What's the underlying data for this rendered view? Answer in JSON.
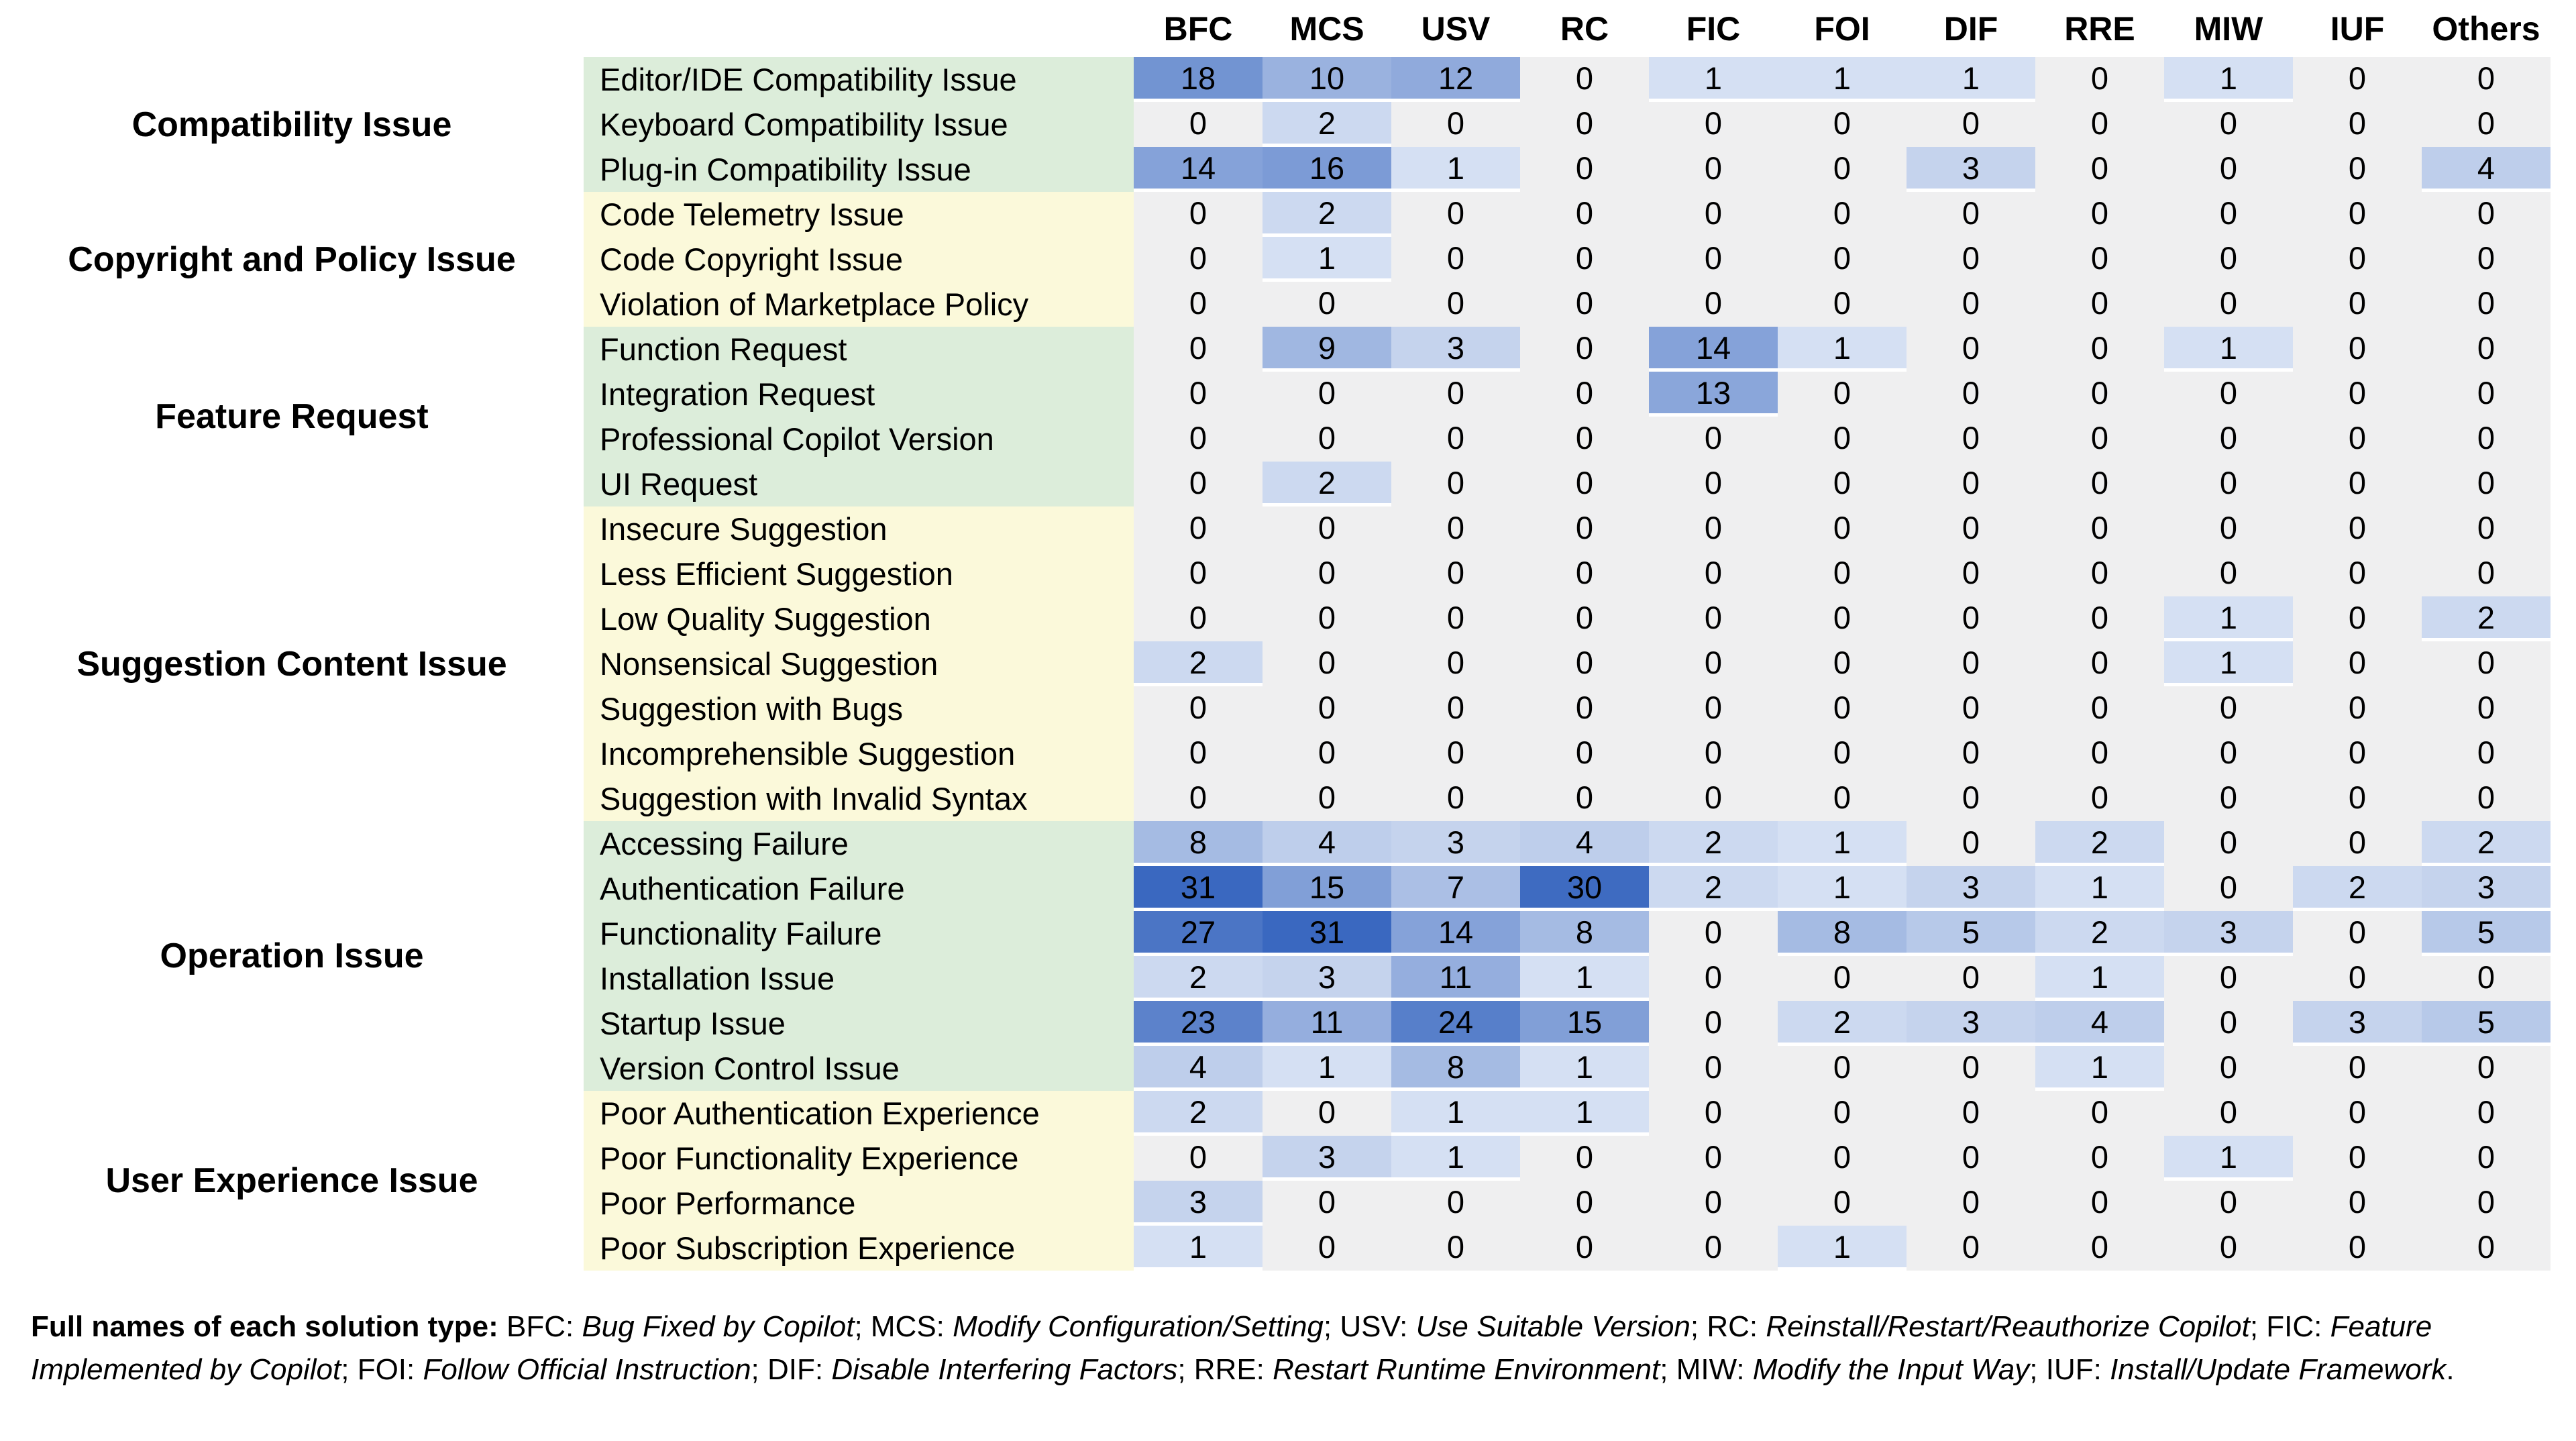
{
  "chart_data": {
    "type": "heatmap",
    "title": "",
    "columns": [
      "BFC",
      "MCS",
      "USV",
      "RC",
      "FIC",
      "FOI",
      "DIF",
      "RRE",
      "MIW",
      "IUF",
      "Others"
    ],
    "value_max": 31,
    "row_groups": [
      {
        "label": "Compatibility Issue",
        "band": "green",
        "rows": [
          {
            "label": "Editor/IDE Compatibility Issue",
            "values": [
              18,
              10,
              12,
              0,
              1,
              1,
              1,
              0,
              1,
              0,
              0
            ]
          },
          {
            "label": "Keyboard Compatibility Issue",
            "values": [
              0,
              2,
              0,
              0,
              0,
              0,
              0,
              0,
              0,
              0,
              0
            ]
          },
          {
            "label": "Plug-in Compatibility Issue",
            "values": [
              14,
              16,
              1,
              0,
              0,
              0,
              3,
              0,
              0,
              0,
              4
            ]
          }
        ]
      },
      {
        "label": "Copyright and Policy Issue",
        "band": "yellow",
        "rows": [
          {
            "label": "Code Telemetry Issue",
            "values": [
              0,
              2,
              0,
              0,
              0,
              0,
              0,
              0,
              0,
              0,
              0
            ]
          },
          {
            "label": "Code Copyright Issue",
            "values": [
              0,
              1,
              0,
              0,
              0,
              0,
              0,
              0,
              0,
              0,
              0
            ]
          },
          {
            "label": "Violation of Marketplace Policy",
            "values": [
              0,
              0,
              0,
              0,
              0,
              0,
              0,
              0,
              0,
              0,
              0
            ]
          }
        ]
      },
      {
        "label": "Feature Request",
        "band": "green",
        "rows": [
          {
            "label": "Function Request",
            "values": [
              0,
              9,
              3,
              0,
              14,
              1,
              0,
              0,
              1,
              0,
              0
            ]
          },
          {
            "label": "Integration Request",
            "values": [
              0,
              0,
              0,
              0,
              13,
              0,
              0,
              0,
              0,
              0,
              0
            ]
          },
          {
            "label": "Professional Copilot Version",
            "values": [
              0,
              0,
              0,
              0,
              0,
              0,
              0,
              0,
              0,
              0,
              0
            ]
          },
          {
            "label": "UI Request",
            "values": [
              0,
              2,
              0,
              0,
              0,
              0,
              0,
              0,
              0,
              0,
              0
            ]
          }
        ]
      },
      {
        "label": "Suggestion Content Issue",
        "band": "yellow",
        "rows": [
          {
            "label": "Insecure Suggestion",
            "values": [
              0,
              0,
              0,
              0,
              0,
              0,
              0,
              0,
              0,
              0,
              0
            ]
          },
          {
            "label": "Less Efficient Suggestion",
            "values": [
              0,
              0,
              0,
              0,
              0,
              0,
              0,
              0,
              0,
              0,
              0
            ]
          },
          {
            "label": "Low Quality Suggestion",
            "values": [
              0,
              0,
              0,
              0,
              0,
              0,
              0,
              0,
              1,
              0,
              2
            ]
          },
          {
            "label": "Nonsensical Suggestion",
            "values": [
              2,
              0,
              0,
              0,
              0,
              0,
              0,
              0,
              1,
              0,
              0
            ]
          },
          {
            "label": "Suggestion with Bugs",
            "values": [
              0,
              0,
              0,
              0,
              0,
              0,
              0,
              0,
              0,
              0,
              0
            ]
          },
          {
            "label": "Incomprehensible Suggestion",
            "values": [
              0,
              0,
              0,
              0,
              0,
              0,
              0,
              0,
              0,
              0,
              0
            ]
          },
          {
            "label": "Suggestion with Invalid Syntax",
            "values": [
              0,
              0,
              0,
              0,
              0,
              0,
              0,
              0,
              0,
              0,
              0
            ]
          }
        ]
      },
      {
        "label": "Operation Issue",
        "band": "green",
        "rows": [
          {
            "label": "Accessing Failure",
            "values": [
              8,
              4,
              3,
              4,
              2,
              1,
              0,
              2,
              0,
              0,
              2
            ]
          },
          {
            "label": "Authentication Failure",
            "values": [
              31,
              15,
              7,
              30,
              2,
              1,
              3,
              1,
              0,
              2,
              3
            ]
          },
          {
            "label": "Functionality Failure",
            "values": [
              27,
              31,
              14,
              8,
              0,
              8,
              5,
              2,
              3,
              0,
              5
            ]
          },
          {
            "label": "Installation Issue",
            "values": [
              2,
              3,
              11,
              1,
              0,
              0,
              0,
              1,
              0,
              0,
              0
            ]
          },
          {
            "label": "Startup Issue",
            "values": [
              23,
              11,
              24,
              15,
              0,
              2,
              3,
              4,
              0,
              3,
              5
            ]
          },
          {
            "label": "Version Control Issue",
            "values": [
              4,
              1,
              8,
              1,
              0,
              0,
              0,
              1,
              0,
              0,
              0
            ]
          }
        ]
      },
      {
        "label": "User Experience Issue",
        "band": "yellow",
        "rows": [
          {
            "label": "Poor Authentication Experience",
            "values": [
              2,
              0,
              1,
              1,
              0,
              0,
              0,
              0,
              0,
              0,
              0
            ]
          },
          {
            "label": "Poor Functionality Experience",
            "values": [
              0,
              3,
              1,
              0,
              0,
              0,
              0,
              0,
              1,
              0,
              0
            ]
          },
          {
            "label": "Poor Performance",
            "values": [
              3,
              0,
              0,
              0,
              0,
              0,
              0,
              0,
              0,
              0,
              0
            ]
          },
          {
            "label": "Poor Subscription Experience",
            "values": [
              1,
              0,
              0,
              0,
              0,
              1,
              0,
              0,
              0,
              0,
              0
            ]
          }
        ]
      }
    ],
    "palette": {
      "green_row_bg": "#dcedda",
      "yellow_row_bg": "#fbf9da",
      "zero_cell_bg": "#efeff0",
      "heat_low": "#e2eaf7",
      "heat_high": "#3a68c0",
      "text": "#000000",
      "page_bg": "#ffffff"
    },
    "legend_position": "none",
    "grid": false
  },
  "caption": {
    "lead": "Full names of each solution type:",
    "pairs": [
      {
        "abbr": "BFC",
        "name": "Bug Fixed by Copilot"
      },
      {
        "abbr": "MCS",
        "name": "Modify Configuration/Setting"
      },
      {
        "abbr": "USV",
        "name": "Use Suitable Version"
      },
      {
        "abbr": "RC",
        "name": "Reinstall/Restart/Reauthorize Copilot"
      },
      {
        "abbr": "FIC",
        "name": "Feature Implemented by Copilot"
      },
      {
        "abbr": "FOI",
        "name": "Follow Official Instruction"
      },
      {
        "abbr": "DIF",
        "name": "Disable Interfering Factors"
      },
      {
        "abbr": "RRE",
        "name": "Restart Runtime Environment"
      },
      {
        "abbr": "MIW",
        "name": "Modify the Input Way"
      },
      {
        "abbr": "IUF",
        "name": "Install/Update Framework"
      }
    ],
    "separator": "; ",
    "terminator": "."
  }
}
